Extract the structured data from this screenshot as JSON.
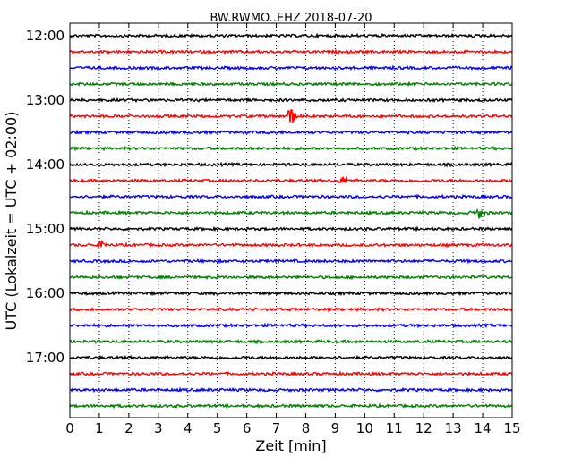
{
  "chart_data": {
    "type": "line",
    "title": "BW.RWMO..EHZ 2018-07-20",
    "xlabel": "Zeit  [min]",
    "ylabel": "UTC (Lokalzeit = UTC + 02:00)",
    "xlim": [
      0,
      15
    ],
    "x_ticks": [
      "0",
      "1",
      "2",
      "3",
      "4",
      "5",
      "6",
      "7",
      "8",
      "9",
      "10",
      "11",
      "12",
      "13",
      "14",
      "15"
    ],
    "y_ticks": [
      "12:00",
      "13:00",
      "14:00",
      "15:00",
      "16:00",
      "17:00"
    ],
    "grid": "vertical dotted",
    "trace_colors": [
      "#000000",
      "#ff0000",
      "#0000ff",
      "#008000"
    ],
    "traces": [
      {
        "start": "12:00",
        "color": "#000000",
        "events": []
      },
      {
        "start": "12:15",
        "color": "#ff0000",
        "events": []
      },
      {
        "start": "12:30",
        "color": "#0000ff",
        "events": []
      },
      {
        "start": "12:45",
        "color": "#008000",
        "events": []
      },
      {
        "start": "13:00",
        "color": "#000000",
        "events": []
      },
      {
        "start": "13:15",
        "color": "#ff0000",
        "events": [
          {
            "t_min": 7.5,
            "amplitude": 1.0
          }
        ]
      },
      {
        "start": "13:30",
        "color": "#0000ff",
        "events": []
      },
      {
        "start": "13:45",
        "color": "#008000",
        "events": []
      },
      {
        "start": "14:00",
        "color": "#000000",
        "events": []
      },
      {
        "start": "14:15",
        "color": "#ff0000",
        "events": [
          {
            "t_min": 9.3,
            "amplitude": 0.4
          }
        ]
      },
      {
        "start": "14:30",
        "color": "#0000ff",
        "events": []
      },
      {
        "start": "14:45",
        "color": "#008000",
        "events": [
          {
            "t_min": 13.9,
            "amplitude": 0.55
          }
        ]
      },
      {
        "start": "15:00",
        "color": "#000000",
        "events": []
      },
      {
        "start": "15:15",
        "color": "#ff0000",
        "events": [
          {
            "t_min": 1.1,
            "amplitude": 0.3
          }
        ]
      },
      {
        "start": "15:30",
        "color": "#0000ff",
        "events": []
      },
      {
        "start": "15:45",
        "color": "#008000",
        "events": []
      },
      {
        "start": "16:00",
        "color": "#000000",
        "events": []
      },
      {
        "start": "16:15",
        "color": "#ff0000",
        "events": []
      },
      {
        "start": "16:30",
        "color": "#0000ff",
        "events": []
      },
      {
        "start": "16:45",
        "color": "#008000",
        "events": []
      },
      {
        "start": "17:00",
        "color": "#000000",
        "events": []
      },
      {
        "start": "17:15",
        "color": "#ff0000",
        "events": []
      },
      {
        "start": "17:30",
        "color": "#0000ff",
        "events": []
      },
      {
        "start": "17:45",
        "color": "#008000",
        "events": []
      }
    ]
  }
}
